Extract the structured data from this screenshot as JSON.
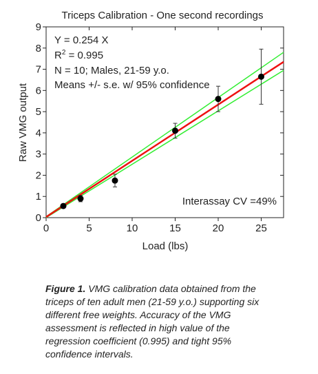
{
  "chart_data": {
    "type": "scatter",
    "title": "Triceps Calibration - One second recordings",
    "x_label": "Load (lbs)",
    "y_label": "Raw VMG output",
    "xlim": [
      0,
      27.6
    ],
    "ylim": [
      0,
      9
    ],
    "xticks": [
      0,
      5,
      10,
      15,
      20,
      25
    ],
    "yticks": [
      0,
      1,
      2,
      3,
      4,
      5,
      6,
      7,
      8,
      9
    ],
    "points": {
      "color": "#000000",
      "x": [
        2,
        4,
        8,
        15,
        20,
        25
      ],
      "values": [
        0.55,
        0.9,
        1.75,
        4.1,
        5.6,
        6.65
      ],
      "errors": [
        0.1,
        0.15,
        0.3,
        0.35,
        0.6,
        1.3
      ]
    },
    "lines": [
      {
        "color": "#33ee33",
        "x": [
          0,
          27.6
        ],
        "values": [
          0.05,
          7.8
        ]
      },
      {
        "color": "#33ee33",
        "x": [
          0,
          27.6
        ],
        "values": [
          0,
          6.95
        ]
      },
      {
        "color": "#ee1111",
        "x": [
          0,
          27.6
        ],
        "values": [
          0.03,
          7.35
        ]
      }
    ],
    "equation": "Y = 0.254 X",
    "r_squared": {
      "base": "R",
      "sup": "2",
      "text": " = 0.995"
    },
    "sample": "N = 10; Males, 21-59 y.o.",
    "note": "Means +/- s.e. w/ 95% confidence",
    "cv": "Interassay CV =49%"
  },
  "caption": {
    "label": "Figure 1.",
    "text": " VMG calibration data obtained from the triceps of ten adult men (21-59 y.o.) supporting six different free weights.  Accuracy of the VMG assessment is reflected in high value of the regression coefficient (0.995) and tight 95% confidence intervals."
  }
}
